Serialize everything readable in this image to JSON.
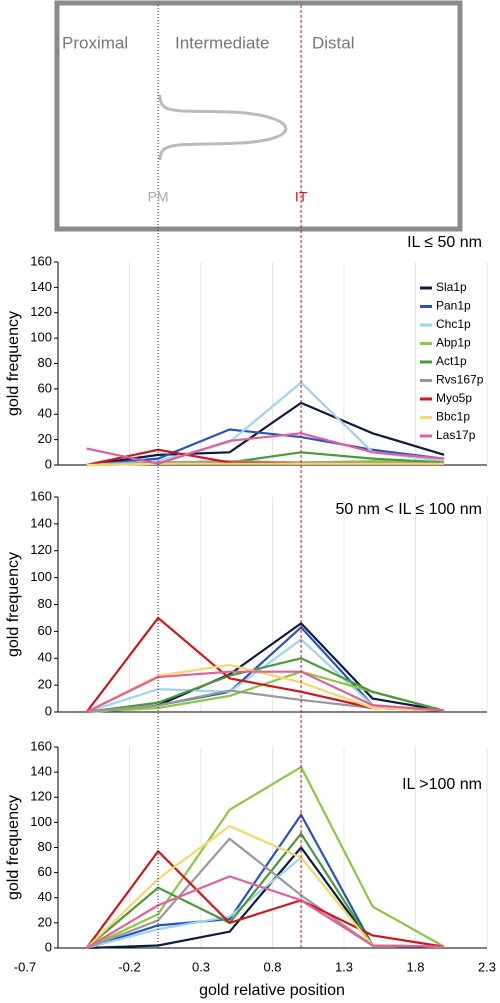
{
  "diagram": {
    "regions": [
      "Proximal",
      "Intermediate",
      "Distal"
    ],
    "reference_lines": [
      {
        "label": "PM",
        "x": 0,
        "color": "#222222",
        "label_color": "#aaaaaa"
      },
      {
        "label": "IT",
        "x": 1,
        "color": "#d0151b",
        "label_color": "#d0151b"
      }
    ]
  },
  "chart_data": [
    {
      "type": "line",
      "annotation": "IL ≤ 50 nm",
      "ylabel": "gold frequency",
      "x": [
        -0.5,
        0,
        0.5,
        1,
        1.5,
        2
      ],
      "xlim": [
        -0.7,
        2.3
      ],
      "ylim": [
        0,
        160
      ],
      "yticks": [
        0,
        20,
        40,
        60,
        80,
        100,
        120,
        140,
        160
      ],
      "grid": true,
      "legend": "upper right",
      "series": [
        {
          "name": "Sla1p",
          "color": "#0d1b3e",
          "values": [
            0,
            8,
            10,
            49,
            25,
            8
          ]
        },
        {
          "name": "Pan1p",
          "color": "#2a52be",
          "values": [
            0,
            5,
            28,
            22,
            12,
            5
          ]
        },
        {
          "name": "Chc1p",
          "color": "#9fd3f0",
          "values": [
            0,
            3,
            18,
            65,
            10,
            3
          ]
        },
        {
          "name": "Abp1p",
          "color": "#8dc63f",
          "values": [
            0,
            1,
            2,
            2,
            3,
            1
          ]
        },
        {
          "name": "Act1p",
          "color": "#4a9a3a",
          "values": [
            0,
            1,
            2,
            10,
            5,
            2
          ]
        },
        {
          "name": "Rvs167p",
          "color": "#999999",
          "values": [
            0,
            2,
            3,
            2,
            2,
            1
          ]
        },
        {
          "name": "Myo5p",
          "color": "#d0151b",
          "values": [
            0,
            12,
            2,
            1,
            1,
            1
          ]
        },
        {
          "name": "Bbc1p",
          "color": "#f5d76e",
          "values": [
            0,
            1,
            1,
            1,
            1,
            1
          ]
        },
        {
          "name": "Las17p",
          "color": "#e0609a",
          "values": [
            13,
            1,
            19,
            25,
            10,
            5
          ]
        }
      ]
    },
    {
      "type": "line",
      "annotation": "50 nm < IL ≤ 100 nm",
      "ylabel": "gold frequency",
      "x": [
        -0.5,
        0,
        0.5,
        1,
        1.5,
        2
      ],
      "xlim": [
        -0.7,
        2.3
      ],
      "ylim": [
        0,
        160
      ],
      "yticks": [
        0,
        20,
        40,
        60,
        80,
        100,
        120,
        140,
        160
      ],
      "grid": true,
      "series": [
        {
          "name": "Sla1p",
          "color": "#0d1b3e",
          "values": [
            0,
            5,
            28,
            66,
            10,
            1
          ]
        },
        {
          "name": "Pan1p",
          "color": "#2a52be",
          "values": [
            0,
            5,
            15,
            63,
            5,
            1
          ]
        },
        {
          "name": "Chc1p",
          "color": "#9fd3f0",
          "values": [
            0,
            17,
            15,
            54,
            5,
            1
          ]
        },
        {
          "name": "Abp1p",
          "color": "#8dc63f",
          "values": [
            0,
            3,
            12,
            30,
            15,
            1
          ]
        },
        {
          "name": "Act1p",
          "color": "#4a9a3a",
          "values": [
            0,
            7,
            27,
            40,
            15,
            1
          ]
        },
        {
          "name": "Rvs167p",
          "color": "#999999",
          "values": [
            0,
            5,
            16,
            9,
            3,
            1
          ]
        },
        {
          "name": "Myo5p",
          "color": "#d0151b",
          "values": [
            0,
            70,
            25,
            15,
            3,
            1
          ]
        },
        {
          "name": "Bbc1p",
          "color": "#f5d76e",
          "values": [
            0,
            27,
            35,
            22,
            3,
            1
          ]
        },
        {
          "name": "Las17p",
          "color": "#e0609a",
          "values": [
            0,
            26,
            30,
            30,
            5,
            1
          ]
        }
      ]
    },
    {
      "type": "line",
      "annotation": "IL >100 nm",
      "ylabel": "gold frequency",
      "xlabel": "gold relative position",
      "x": [
        -0.5,
        0,
        0.5,
        1,
        1.5,
        2
      ],
      "xlim": [
        -0.7,
        2.3
      ],
      "xticks": [
        -0.7,
        -0.2,
        0.3,
        0.8,
        1.3,
        1.8,
        2.3
      ],
      "ylim": [
        0,
        160
      ],
      "yticks": [
        0,
        20,
        40,
        60,
        80,
        100,
        120,
        140,
        160
      ],
      "grid": true,
      "series": [
        {
          "name": "Sla1p",
          "color": "#0d1b3e",
          "values": [
            0,
            2,
            13,
            80,
            2,
            1
          ]
        },
        {
          "name": "Pan1p",
          "color": "#2a52be",
          "values": [
            0,
            18,
            23,
            106,
            2,
            1
          ]
        },
        {
          "name": "Chc1p",
          "color": "#9fd3f0",
          "values": [
            0,
            15,
            25,
            72,
            2,
            1
          ]
        },
        {
          "name": "Abp1p",
          "color": "#8dc63f",
          "values": [
            0,
            27,
            110,
            144,
            33,
            1
          ]
        },
        {
          "name": "Act1p",
          "color": "#4a9a3a",
          "values": [
            0,
            48,
            20,
            91,
            2,
            1
          ]
        },
        {
          "name": "Rvs167p",
          "color": "#999999",
          "values": [
            0,
            22,
            87,
            42,
            2,
            1
          ]
        },
        {
          "name": "Myo5p",
          "color": "#d0151b",
          "values": [
            0,
            77,
            20,
            38,
            10,
            1
          ]
        },
        {
          "name": "Bbc1p",
          "color": "#f5d76e",
          "values": [
            0,
            55,
            97,
            72,
            2,
            1
          ]
        },
        {
          "name": "Las17p",
          "color": "#e0609a",
          "values": [
            0,
            34,
            57,
            38,
            2,
            1
          ]
        }
      ]
    }
  ]
}
